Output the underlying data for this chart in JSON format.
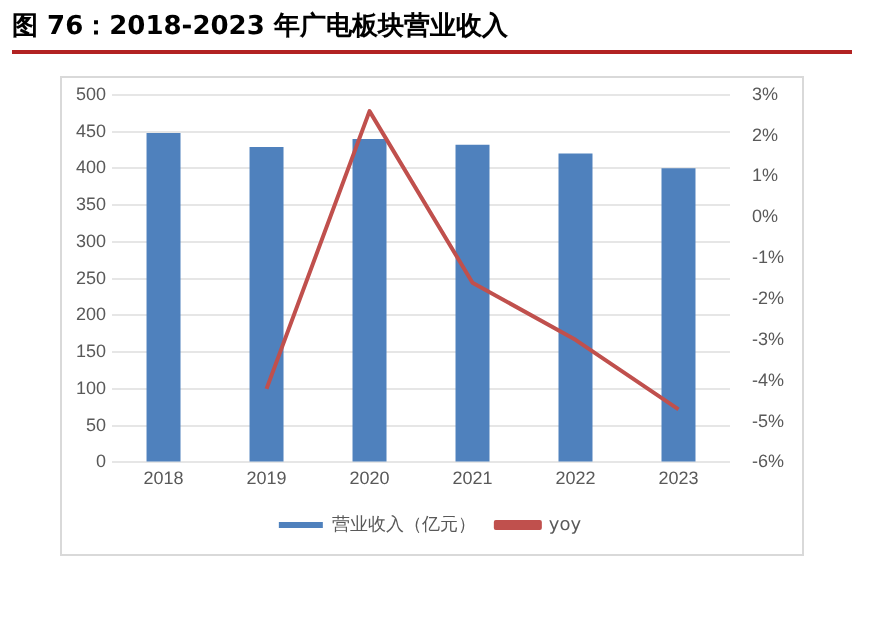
{
  "chart_data": {
    "type": "bar",
    "title": "图 76：2018-2023 年广电板块营业收入",
    "categories": [
      "2018",
      "2019",
      "2020",
      "2021",
      "2022",
      "2023"
    ],
    "series": [
      {
        "name": "营业收入（亿元）",
        "color": "#4f81bd",
        "values": [
          448,
          429,
          440,
          432,
          420,
          400
        ]
      },
      {
        "name": "yoy",
        "type": "line",
        "axis": "y2",
        "color": "#c0504d",
        "values": [
          null,
          -4.2,
          2.6,
          -1.6,
          -3.0,
          -4.7
        ]
      }
    ],
    "ylim": [
      0,
      500
    ],
    "yticks": [
      0,
      50,
      100,
      150,
      200,
      250,
      300,
      350,
      400,
      450,
      500
    ],
    "y2lim": [
      -6,
      3
    ],
    "y2ticks": [
      {
        "value": -6,
        "label": "-6%"
      },
      {
        "value": -5,
        "label": "-5%"
      },
      {
        "value": -4,
        "label": "-4%"
      },
      {
        "value": -3,
        "label": "-3%"
      },
      {
        "value": -2,
        "label": "-2%"
      },
      {
        "value": -1,
        "label": "-1%"
      },
      {
        "value": 0,
        "label": "0%"
      },
      {
        "value": 1,
        "label": "1%"
      },
      {
        "value": 2,
        "label": "2%"
      },
      {
        "value": 3,
        "label": "3%"
      }
    ],
    "grid": "y",
    "legend": "bottom",
    "marker": "none"
  }
}
